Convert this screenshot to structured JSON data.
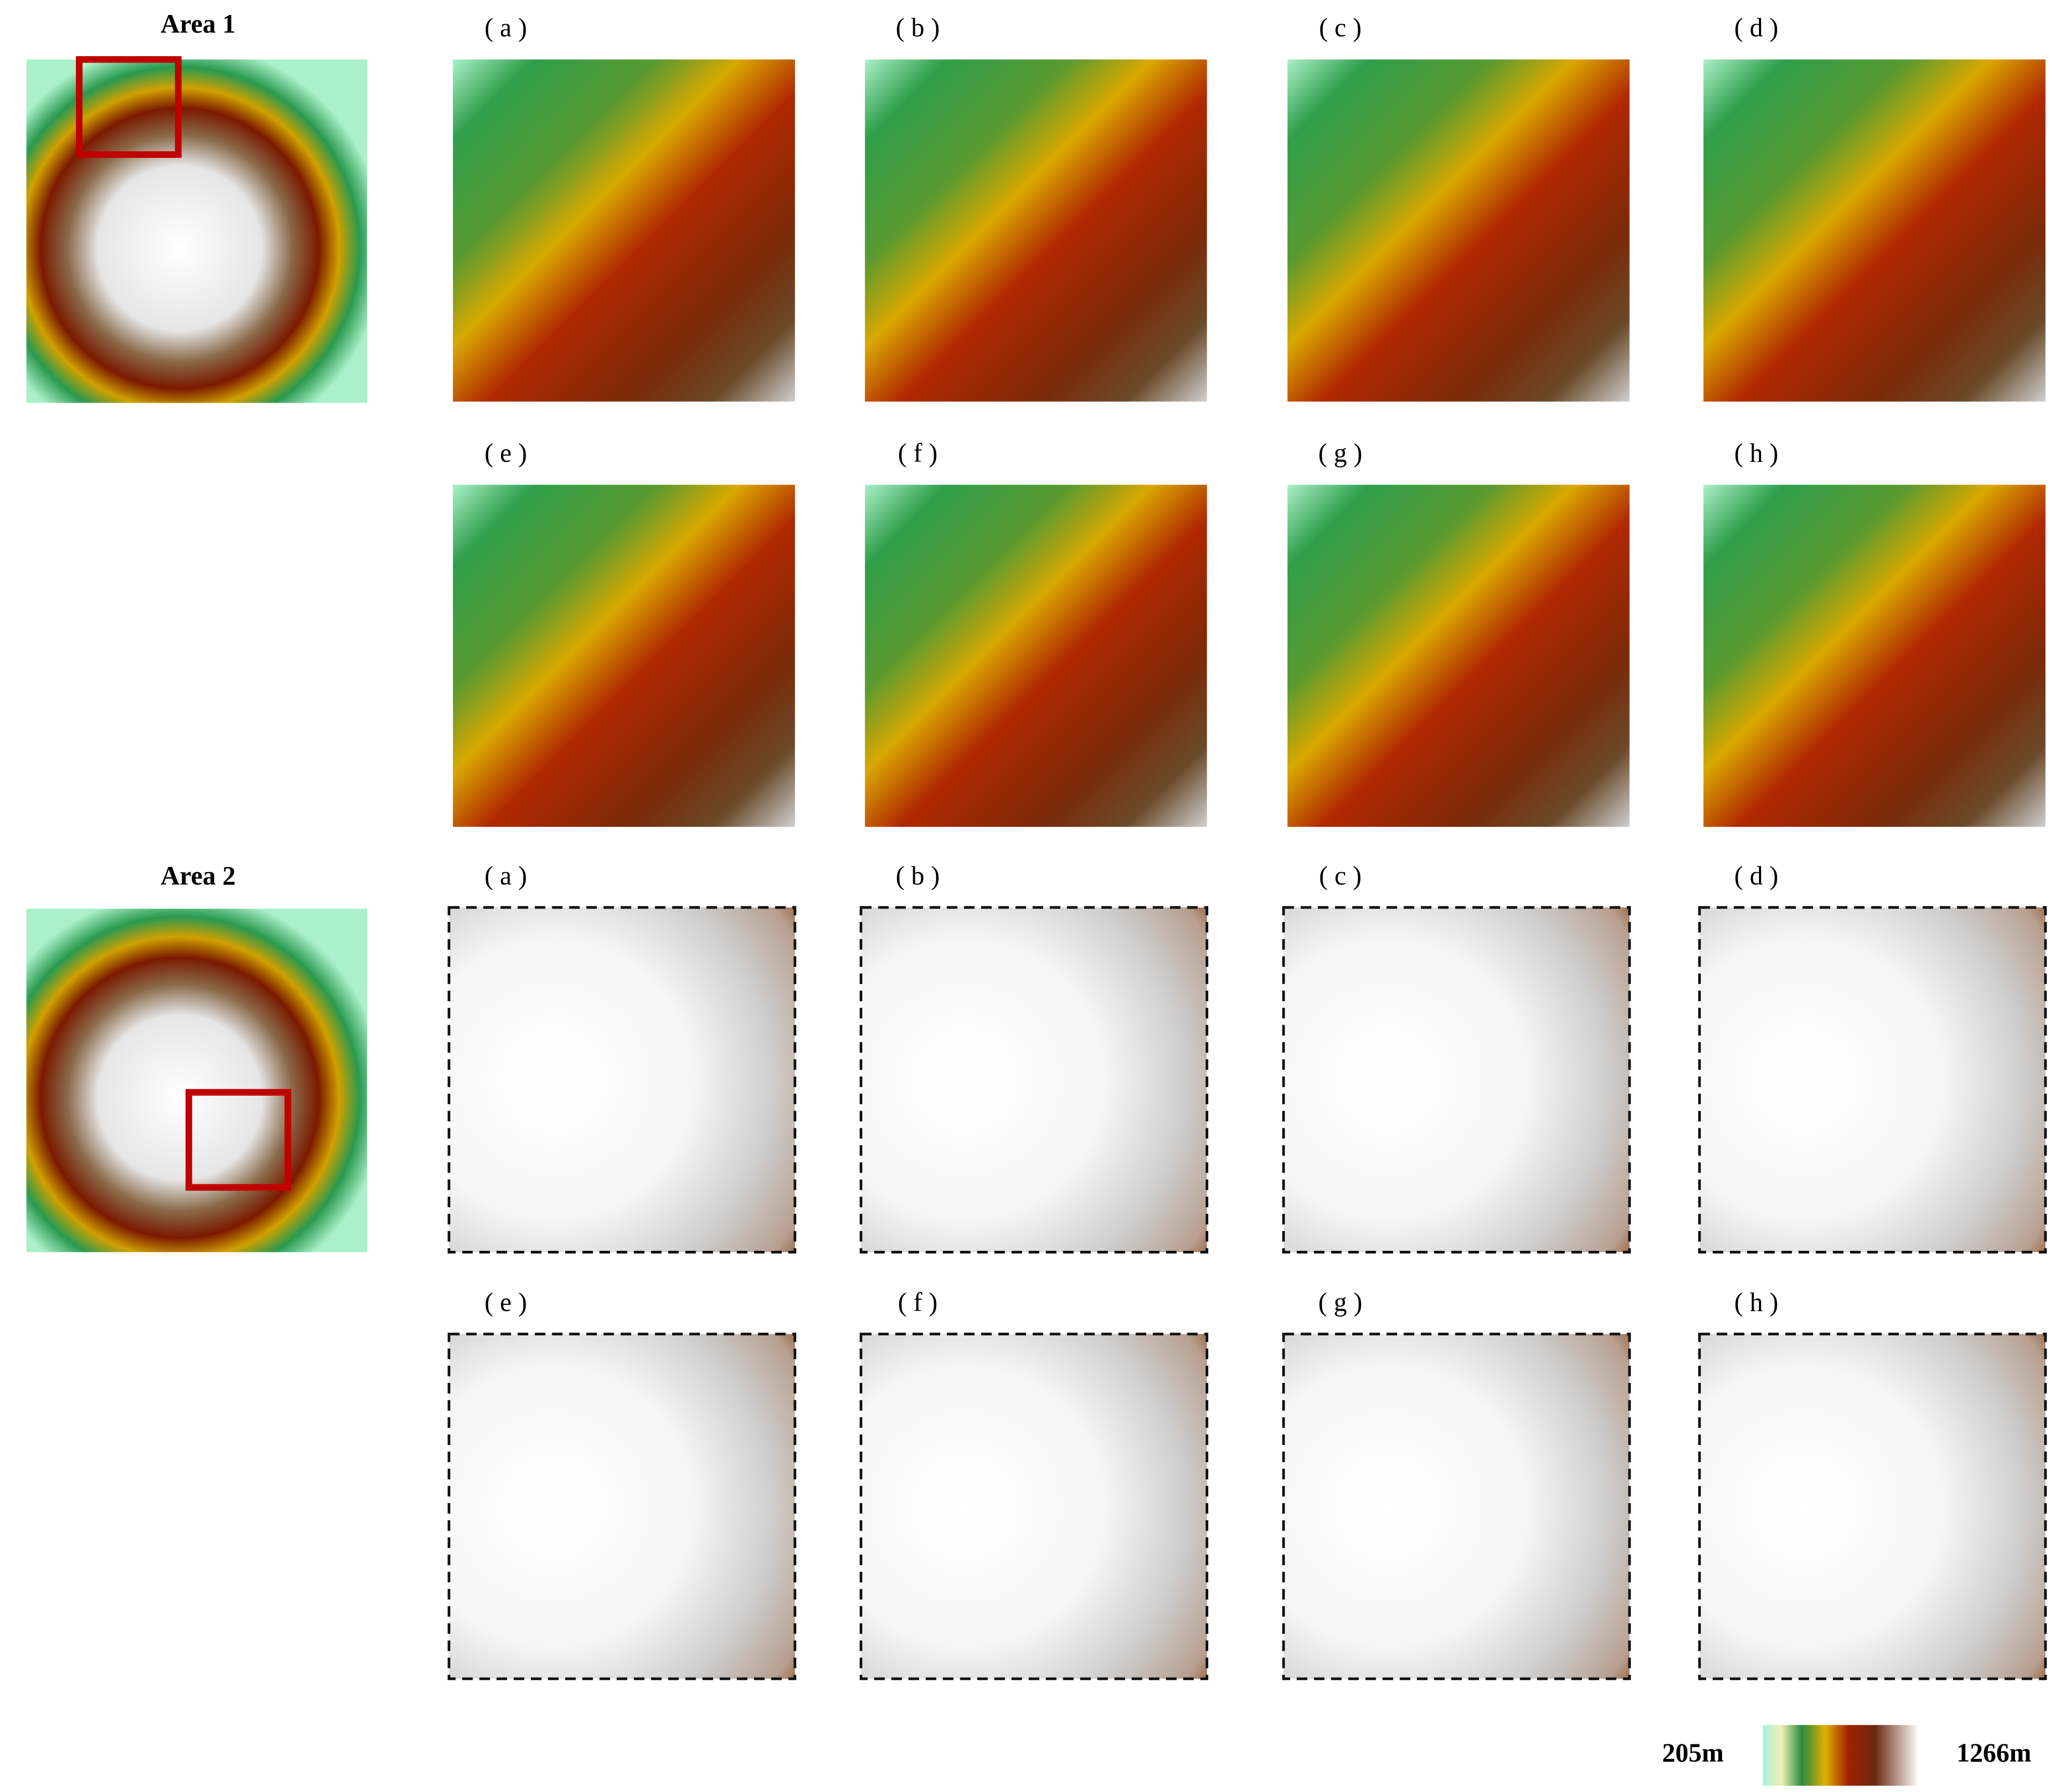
{
  "areas": [
    {
      "title": "Area 1",
      "panels": [
        "( a )",
        "( b )",
        "( c )",
        "( d )",
        "( e )",
        "( f )",
        "( g )",
        "( h )"
      ]
    },
    {
      "title": "Area 2",
      "panels": [
        "( a )",
        "( b )",
        "( c )",
        "( d )",
        "( e )",
        "( f )",
        "( g )",
        "( h )"
      ]
    }
  ],
  "legend": {
    "min_label": "205m",
    "max_label": "1266m"
  }
}
